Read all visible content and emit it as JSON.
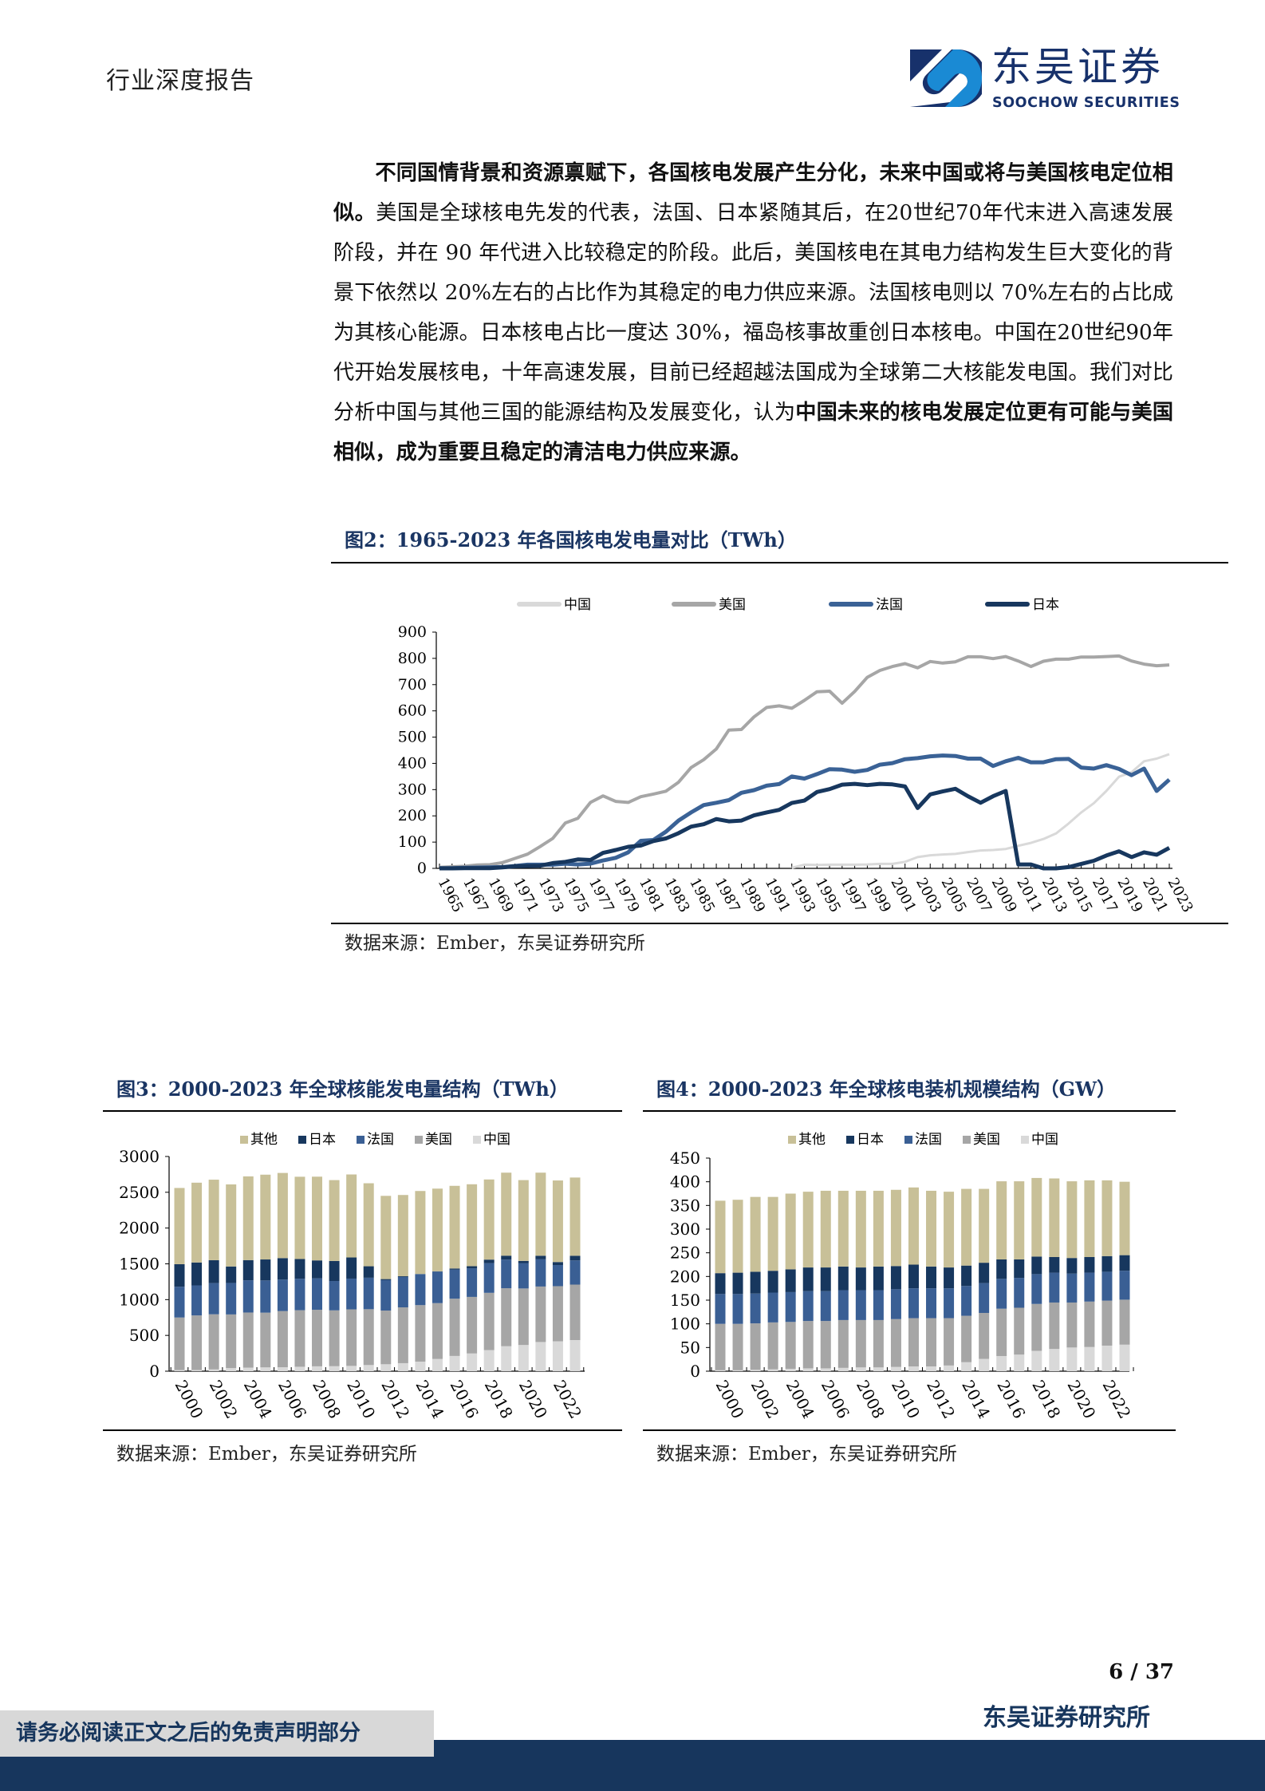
{
  "header": {
    "report_type": "行业深度报告"
  },
  "logo": {
    "name_cn": "东吴证券",
    "name_en": "SOOCHOW SECURITIES",
    "colors": {
      "dark": "#17316b",
      "light": "#1a8ad4"
    }
  },
  "body": {
    "paragraph": [
      {
        "text": "不同国情背景和资源禀赋下，各国核电发展产生分化，未来中国或将与美国核电定位相似。",
        "bold": true
      },
      {
        "text": "美国是全球核电先发的代表，法国、日本紧随其后，在20世纪70年代末进入高速发展阶段，并在 90 年代进入比较稳定的阶段。此后，美国核电在其电力结构发生巨大变化的背景下依然以 20%左右的占比作为其稳定的电力供应来源。法国核电则以 70%左右的占比成为其核心能源。日本核电占比一度达 30%，福岛核事故重创日本核电。中国在20世纪90年代开始发展核电，十年高速发展，目前已经超越法国成为全球第二大核能发电国。我们对比分析中国与其他三国的能源结构及发展变化，认为",
        "bold": false
      },
      {
        "text": "中国未来的核电发展定位更有可能与美国相似，成为重要且稳定的清洁电力供应来源。",
        "bold": true
      }
    ]
  },
  "figures": {
    "fig2": {
      "title": "图2：1965-2023 年各国核电发电量对比（TWh）",
      "source": "数据来源：Ember，东吴证券研究所"
    },
    "fig3": {
      "title": "图3：2000-2023 年全球核能发电量结构（TWh）",
      "source": "数据来源：Ember，东吴证券研究所"
    },
    "fig4": {
      "title": "图4：2000-2023 年全球核电装机规模结构（GW）",
      "source": "数据来源：Ember，东吴证券研究所"
    }
  },
  "chart_data": [
    {
      "type": "line",
      "unit": "TWh",
      "x": [
        1965,
        1966,
        1967,
        1968,
        1969,
        1970,
        1971,
        1972,
        1973,
        1974,
        1975,
        1976,
        1977,
        1978,
        1979,
        1980,
        1981,
        1982,
        1983,
        1984,
        1985,
        1986,
        1987,
        1988,
        1989,
        1990,
        1991,
        1992,
        1993,
        1994,
        1995,
        1996,
        1997,
        1998,
        1999,
        2000,
        2001,
        2002,
        2003,
        2004,
        2005,
        2006,
        2007,
        2008,
        2009,
        2010,
        2011,
        2012,
        2013,
        2014,
        2015,
        2016,
        2017,
        2018,
        2019,
        2020,
        2021,
        2022,
        2023
      ],
      "xticks": [
        "1965",
        "1967",
        "1969",
        "1971",
        "1973",
        "1975",
        "1977",
        "1979",
        "1981",
        "1983",
        "1985",
        "1987",
        "1989",
        "1991",
        "1993",
        "1995",
        "1997",
        "1999",
        "2001",
        "2003",
        "2005",
        "2007",
        "2009",
        "2011",
        "2013",
        "2015",
        "2017",
        "2019",
        "2021",
        "2023"
      ],
      "ylim": [
        0,
        900
      ],
      "yticks": [
        0,
        100,
        200,
        300,
        400,
        500,
        600,
        700,
        800,
        900
      ],
      "legend": "top",
      "grid": false,
      "series": [
        {
          "name": "中国",
          "color": "#d9d9d9",
          "values": [
            null,
            null,
            null,
            null,
            null,
            null,
            null,
            null,
            null,
            null,
            null,
            null,
            null,
            null,
            null,
            null,
            null,
            null,
            null,
            null,
            null,
            null,
            null,
            null,
            null,
            null,
            null,
            null,
            2,
            14,
            13,
            14,
            14,
            14,
            15,
            17,
            17,
            25,
            43,
            50,
            53,
            55,
            62,
            68,
            70,
            74,
            86,
            97,
            112,
            133,
            171,
            213,
            248,
            295,
            349,
            366,
            408,
            418,
            435
          ]
        },
        {
          "name": "美国",
          "color": "#a6a6a6",
          "values": [
            4,
            6,
            8,
            13,
            14,
            22,
            38,
            54,
            83,
            114,
            173,
            191,
            251,
            276,
            255,
            251,
            273,
            283,
            294,
            328,
            384,
            414,
            455,
            527,
            529,
            577,
            613,
            619,
            610,
            640,
            673,
            675,
            629,
            674,
            728,
            754,
            769,
            780,
            764,
            788,
            782,
            787,
            806,
            806,
            799,
            807,
            790,
            769,
            789,
            797,
            797,
            805,
            805,
            807,
            809,
            790,
            778,
            772,
            775
          ]
        },
        {
          "name": "法国",
          "color": "#3a6296",
          "values": [
            1,
            1,
            2,
            3,
            4,
            5,
            9,
            14,
            14,
            14,
            18,
            15,
            18,
            30,
            40,
            61,
            105,
            108,
            140,
            182,
            213,
            241,
            250,
            260,
            288,
            298,
            315,
            321,
            350,
            342,
            359,
            378,
            376,
            368,
            375,
            395,
            401,
            416,
            420,
            427,
            430,
            428,
            418,
            418,
            390,
            408,
            421,
            404,
            404,
            416,
            417,
            384,
            380,
            393,
            379,
            355,
            380,
            295,
            338
          ]
        },
        {
          "name": "日本",
          "color": "#17375e",
          "values": [
            0,
            0,
            1,
            1,
            1,
            4,
            8,
            9,
            10,
            20,
            25,
            34,
            32,
            59,
            70,
            82,
            87,
            104,
            114,
            134,
            159,
            168,
            188,
            179,
            182,
            202,
            213,
            223,
            249,
            258,
            291,
            302,
            319,
            322,
            317,
            322,
            320,
            312,
            230,
            282,
            293,
            303,
            275,
            250,
            275,
            295,
            15,
            15,
            0,
            0,
            5,
            17,
            29,
            49,
            65,
            43,
            61,
            52,
            78
          ]
        }
      ]
    },
    {
      "type": "bar",
      "stacked": true,
      "unit": "TWh",
      "categories": [
        "2000",
        "2001",
        "2002",
        "2003",
        "2004",
        "2005",
        "2006",
        "2007",
        "2008",
        "2009",
        "2010",
        "2011",
        "2012",
        "2013",
        "2014",
        "2015",
        "2016",
        "2017",
        "2018",
        "2019",
        "2020",
        "2021",
        "2022",
        "2023"
      ],
      "xticks": [
        "2000",
        "2002",
        "2004",
        "2006",
        "2008",
        "2010",
        "2012",
        "2014",
        "2016",
        "2018",
        "2020",
        "2022"
      ],
      "ylim": [
        0,
        3000
      ],
      "yticks": [
        0,
        500,
        1000,
        1500,
        2000,
        2500,
        3000
      ],
      "legend": "top",
      "legend_order": [
        "其他",
        "日本",
        "法国",
        "美国",
        "中国"
      ],
      "series": [
        {
          "name": "中国",
          "color": "#d9d9d9",
          "values": [
            16,
            17,
            25,
            43,
            50,
            53,
            55,
            62,
            68,
            70,
            74,
            86,
            97,
            112,
            133,
            171,
            213,
            248,
            295,
            349,
            366,
            408,
            418,
            435
          ]
        },
        {
          "name": "美国",
          "color": "#a6a6a6",
          "values": [
            734,
            762,
            770,
            750,
            770,
            765,
            785,
            790,
            790,
            780,
            790,
            780,
            750,
            780,
            790,
            780,
            800,
            790,
            800,
            810,
            790,
            775,
            770,
            775
          ]
        },
        {
          "name": "法国",
          "color": "#3a5f94",
          "values": [
            430,
            420,
            436,
            440,
            450,
            450,
            440,
            440,
            440,
            410,
            430,
            440,
            425,
            425,
            435,
            440,
            405,
            400,
            415,
            400,
            355,
            380,
            295,
            338
          ]
        },
        {
          "name": "日本",
          "color": "#17375e",
          "values": [
            315,
            320,
            320,
            230,
            282,
            293,
            300,
            275,
            250,
            280,
            295,
            160,
            15,
            10,
            0,
            5,
            17,
            29,
            49,
            55,
            30,
            50,
            42,
            65
          ]
        },
        {
          "name": "其他",
          "color": "#c8c098",
          "values": [
            1065,
            1115,
            1125,
            1147,
            1170,
            1185,
            1190,
            1150,
            1170,
            1130,
            1160,
            1160,
            1163,
            1135,
            1160,
            1155,
            1155,
            1145,
            1120,
            1160,
            1129,
            1161,
            1140,
            1093
          ]
        }
      ]
    },
    {
      "type": "bar",
      "stacked": true,
      "unit": "GW",
      "categories": [
        "2000",
        "2001",
        "2002",
        "2003",
        "2004",
        "2005",
        "2006",
        "2007",
        "2008",
        "2009",
        "2010",
        "2011",
        "2012",
        "2013",
        "2014",
        "2015",
        "2016",
        "2017",
        "2018",
        "2019",
        "2020",
        "2021",
        "2022",
        "2023"
      ],
      "xticks": [
        "2000",
        "2002",
        "2004",
        "2006",
        "2008",
        "2010",
        "2012",
        "2014",
        "2016",
        "2018",
        "2020",
        "2022"
      ],
      "ylim": [
        0,
        450
      ],
      "yticks": [
        0,
        50,
        100,
        150,
        200,
        250,
        300,
        350,
        400,
        450
      ],
      "legend": "top",
      "legend_order": [
        "其他",
        "日本",
        "法国",
        "美国",
        "中国"
      ],
      "series": [
        {
          "name": "中国",
          "color": "#d9d9d9",
          "values": [
            2,
            2,
            3,
            4,
            5,
            6,
            6,
            7,
            8,
            8,
            9,
            10,
            10,
            12,
            19,
            26,
            32,
            35,
            43,
            47,
            50,
            51,
            54,
            56
          ]
        },
        {
          "name": "美国",
          "color": "#a6a6a6",
          "values": [
            98,
            98,
            98,
            99,
            99,
            100,
            100,
            101,
            100,
            100,
            101,
            102,
            102,
            100,
            98,
            97,
            100,
            99,
            99,
            98,
            95,
            96,
            95,
            95
          ]
        },
        {
          "name": "法国",
          "color": "#3a5f94",
          "values": [
            63,
            63,
            63,
            63,
            63,
            63,
            63,
            63,
            63,
            63,
            63,
            63,
            63,
            63,
            63,
            63,
            63,
            63,
            63,
            63,
            61,
            61,
            61,
            61
          ]
        },
        {
          "name": "日本",
          "color": "#17375e",
          "values": [
            44,
            45,
            46,
            46,
            48,
            50,
            50,
            50,
            48,
            50,
            49,
            50,
            46,
            44,
            43,
            43,
            41,
            39,
            37,
            33,
            33,
            33,
            33,
            33
          ]
        },
        {
          "name": "其他",
          "color": "#c8c098",
          "values": [
            153,
            154,
            158,
            156,
            160,
            160,
            162,
            160,
            162,
            160,
            161,
            163,
            160,
            160,
            162,
            156,
            165,
            165,
            166,
            166,
            162,
            162,
            160,
            155
          ]
        }
      ]
    }
  ],
  "footer": {
    "page": "6 / 37",
    "disclaimer": "请务必阅读正文之后的免责声明部分",
    "org": "东吴证券研究所",
    "band_color": "#17365d"
  }
}
